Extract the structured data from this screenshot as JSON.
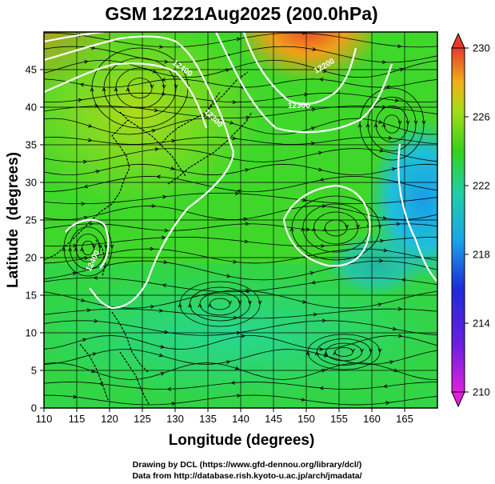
{
  "title": "GSM 12Z21Aug2025 (200.0hPa)",
  "xlabel": "Longitude (degrees)",
  "ylabel": "Latitude  (degrees)",
  "credits": [
    "Drawing by DCL (https://www.gfd-dennou.org/library/dcl/)",
    "Data from http://database.rish.kyoto-u.ac.jp/arch/jmadata/"
  ],
  "chart_data": {
    "type": "heatmap",
    "xlim": [
      110,
      170
    ],
    "ylim": [
      0,
      50
    ],
    "x_ticks": [
      110,
      115,
      120,
      125,
      130,
      135,
      140,
      145,
      150,
      155,
      160,
      165
    ],
    "y_ticks": [
      0,
      5,
      10,
      15,
      20,
      25,
      30,
      35,
      40,
      45
    ],
    "grid": true,
    "colorbar": {
      "range": [
        210,
        230
      ],
      "tick_values": [
        230,
        226,
        222,
        218,
        214,
        210
      ],
      "placement": "right"
    },
    "contour_labels": [
      "12400",
      "12300",
      "12200",
      "12300",
      "12400"
    ],
    "colors": {
      "magenta": "#e020e0",
      "blue": "#1d2bd8",
      "cyan": "#19b8e8",
      "teal": "#1fd0a8",
      "green": "#33d21a",
      "yellow": "#c8dc1a",
      "orange": "#f09018",
      "red": "#e83a2a",
      "contour": "#ffffff",
      "streamline": "#000000"
    }
  }
}
